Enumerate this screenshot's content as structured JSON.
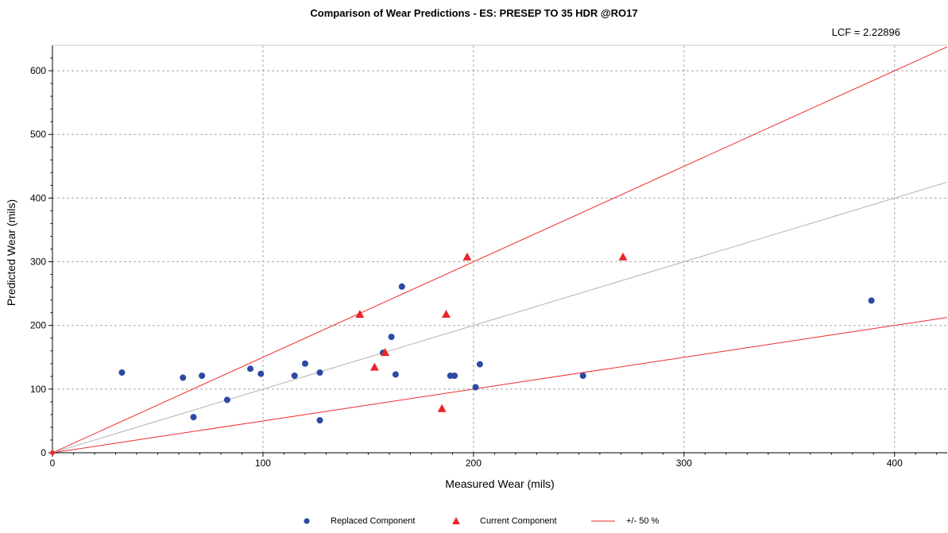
{
  "chart_data": {
    "type": "scatter",
    "title": "Comparison of Wear Predictions - ES: PRESEP TO 35 HDR @RO17",
    "annotation": "LCF = 2.22896",
    "xlabel": "Measured Wear (mils)",
    "ylabel": "Predicted Wear (mils)",
    "xlim": [
      0,
      425
    ],
    "ylim": [
      0,
      640
    ],
    "xticks": [
      0,
      100,
      200,
      300,
      400
    ],
    "yticks": [
      0,
      100,
      200,
      300,
      400,
      500,
      600
    ],
    "grid": true,
    "legend_position": "bottom",
    "series": [
      {
        "name": "Replaced Component",
        "marker": "circle",
        "color": "#2a4aa5",
        "points": [
          [
            33,
            126
          ],
          [
            62,
            118
          ],
          [
            67,
            56
          ],
          [
            71,
            121
          ],
          [
            83,
            83
          ],
          [
            94,
            132
          ],
          [
            99,
            124
          ],
          [
            115,
            121
          ],
          [
            120,
            140
          ],
          [
            127,
            126
          ],
          [
            127,
            51
          ],
          [
            157,
            157
          ],
          [
            161,
            182
          ],
          [
            163,
            123
          ],
          [
            166,
            261
          ],
          [
            189,
            121
          ],
          [
            191,
            121
          ],
          [
            201,
            103
          ],
          [
            203,
            139
          ],
          [
            252,
            121
          ],
          [
            389,
            239
          ]
        ]
      },
      {
        "name": "Current Component",
        "marker": "triangle",
        "color": "#e8262b",
        "points": [
          [
            146,
            217
          ],
          [
            153,
            134
          ],
          [
            158,
            157
          ],
          [
            185,
            69
          ],
          [
            187,
            217
          ],
          [
            197,
            307
          ],
          [
            271,
            307
          ]
        ]
      },
      {
        "name": "+/- 50 %",
        "marker": "line",
        "color": "#ee2c2c",
        "lines": [
          {
            "slope": 1.5
          },
          {
            "slope": 0.5
          }
        ]
      },
      {
        "marker": "line",
        "color": "#b4b4b4",
        "lines": [
          {
            "slope": 1.0
          }
        ]
      }
    ]
  }
}
